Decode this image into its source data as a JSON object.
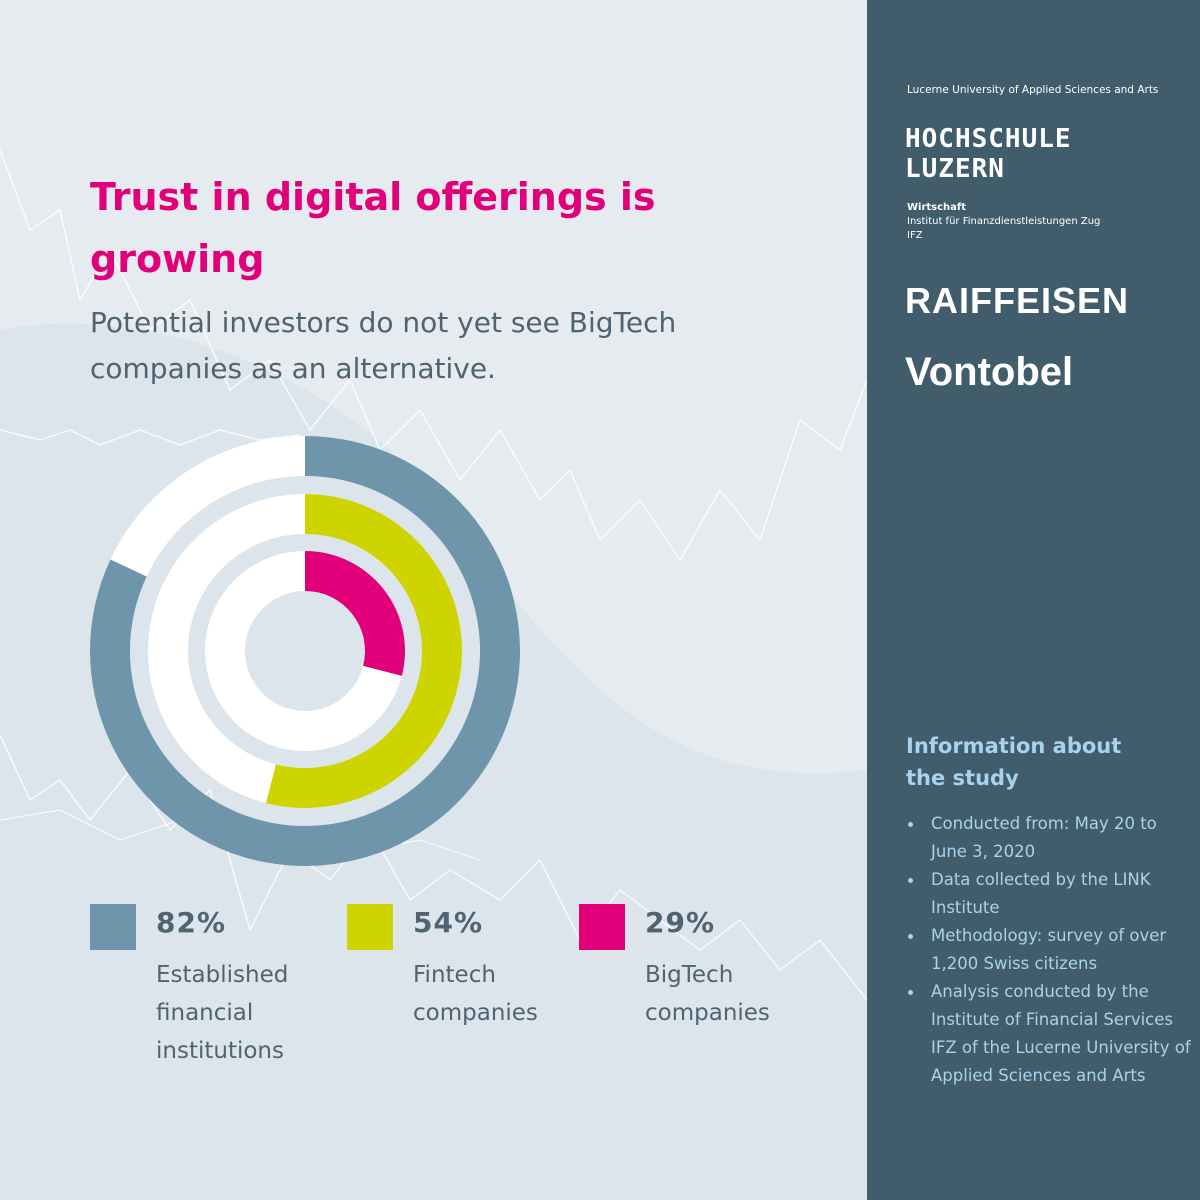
{
  "title": "Trust in digital offerings is growing",
  "subtitle": "Potential investors do not yet see BigTech companies as an alternative.",
  "colors": {
    "background": "#e6ebef",
    "sidebar": "#415c6b",
    "accent_title": "#e2007a",
    "info_text": "#a8d3ec"
  },
  "chart_data": {
    "type": "pie",
    "variant": "concentric-rings",
    "series": [
      {
        "name": "Established financial institutions",
        "value": 82,
        "label": "82%",
        "color": "#6f95aa"
      },
      {
        "name": "Fintech companies",
        "value": 54,
        "label": "54%",
        "color": "#cdd400"
      },
      {
        "name": "BigTech companies",
        "value": 29,
        "label": "29%",
        "color": "#e2007a"
      }
    ],
    "max": 100
  },
  "legend": [
    {
      "pct": "82%",
      "label": "Established financial institutions"
    },
    {
      "pct": "54%",
      "label": "Fintech companies"
    },
    {
      "pct": "29%",
      "label": "BigTech companies"
    }
  ],
  "sidebar": {
    "hslu_small": "Lucerne University of Applied Sciences and Arts",
    "hslu_line1": "HOCHSCHULE",
    "hslu_line2": "LUZERN",
    "dept_name": "Wirtschaft",
    "dept_line1": "Institut für Finanzdienstleistungen Zug",
    "dept_line2": "IFZ",
    "logo_raiffeisen": "RAIFFEISEN",
    "logo_vontobel": "Vontobel",
    "info_heading": "Information about the study",
    "info_items": [
      "Conducted from: May 20 to June 3, 2020",
      "Data collected by the LINK Institute",
      "Methodology: survey of over 1,200 Swiss citizens",
      "Analysis conducted by the Institute of Financial Services IFZ of the Lucerne University of Applied Sciences and Arts"
    ]
  }
}
